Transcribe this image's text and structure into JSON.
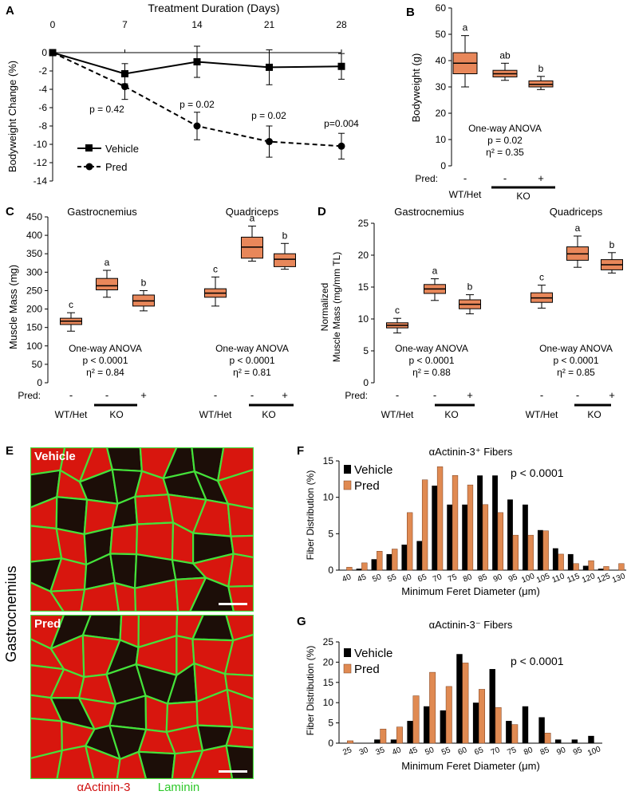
{
  "panels": {
    "A": "A",
    "B": "B",
    "C": "C",
    "D": "D",
    "E": "E",
    "F": "F",
    "G": "G"
  },
  "colors": {
    "box_fill": "#E8875A",
    "box_border": "#000000",
    "vehicle": "#000000",
    "pred": "#E08A52",
    "micro_red": "#D8160E",
    "micro_green": "#44E23A",
    "micro_dark": "#1C0E08"
  },
  "panel_a": {
    "top_axis_label": "Treatment Duration (Days)",
    "ylabel": "Bodyweight Change (%)",
    "legend": [
      "Vehicle",
      "Pred"
    ],
    "pvalues": [
      "p = 0.42",
      "p = 0.02",
      "p = 0.02",
      "p=0.004"
    ]
  },
  "panel_b": {
    "ylabel": "Bodyweight (g)",
    "stats": [
      "One-way ANOVA",
      "p = 0.02",
      "η² = 0.35"
    ],
    "letters": [
      "a",
      "ab",
      "b"
    ]
  },
  "panel_c": {
    "ylabel": "Muscle Mass (mg)",
    "group_titles": [
      "Gastrocnemius",
      "Quadriceps"
    ],
    "letters": [
      [
        "c",
        "a",
        "b"
      ],
      [
        "c",
        "a",
        "b"
      ]
    ],
    "stats": [
      [
        "One-way ANOVA",
        "p < 0.0001",
        "η² = 0.84"
      ],
      [
        "One-way ANOVA",
        "p < 0.0001",
        "η² = 0.81"
      ]
    ]
  },
  "panel_d": {
    "ylabel_line1": "Normalized",
    "ylabel_line2": "Muscle Mass (mg/mm TL)",
    "group_titles": [
      "Gastrocnemius",
      "Quadriceps"
    ],
    "letters": [
      [
        "c",
        "a",
        "b"
      ],
      [
        "c",
        "a",
        "b"
      ]
    ],
    "stats": [
      [
        "One-way ANOVA",
        "p < 0.0001",
        "η² = 0.88"
      ],
      [
        "One-way ANOVA",
        "p < 0.0001",
        "η² = 0.85"
      ]
    ]
  },
  "groups": {
    "pred_label": "Pred:",
    "pred_marks": [
      "-",
      "-",
      "+"
    ],
    "genotypes": [
      "WT/Het",
      "KO"
    ]
  },
  "panel_e": {
    "side_label": "Gastrocnemius",
    "image_labels": [
      "Vehicle",
      "Pred"
    ],
    "caption_red": "αActinin-3",
    "caption_green": "Laminin"
  },
  "panel_f": {
    "title": "αActinin-3⁺ Fibers",
    "ylabel": "Fiber Distribution (%)",
    "xlabel": "Minimum Feret Diameter (μm)",
    "legend": [
      "Vehicle",
      "Pred"
    ],
    "pvalue": "p < 0.0001"
  },
  "panel_g": {
    "title": "αActinin-3⁻ Fibers",
    "ylabel": "Fiber Distribution (%)",
    "xlabel": "Minimum Feret Diameter (μm)",
    "legend": [
      "Vehicle",
      "Pred"
    ],
    "pvalue": "p < 0.0001"
  },
  "chart_data": [
    {
      "id": "A",
      "type": "line",
      "title": "Treatment Duration (Days)",
      "xlabel": "",
      "ylabel": "Bodyweight Change (%)",
      "x": [
        0,
        7,
        14,
        21,
        28
      ],
      "xlim": [
        0,
        28
      ],
      "ylim": [
        -14,
        0
      ],
      "x_ticks": [
        0,
        7,
        14,
        21,
        28
      ],
      "y_ticks": [
        0,
        -2,
        -4,
        -6,
        -8,
        -10,
        -12,
        -14
      ],
      "series": [
        {
          "name": "Vehicle",
          "values": [
            0,
            -2.3,
            -1.0,
            -1.6,
            -1.5
          ],
          "errors": [
            0,
            1.1,
            1.7,
            1.9,
            1.4
          ]
        },
        {
          "name": "Pred",
          "values": [
            0,
            -3.7,
            -8.0,
            -9.7,
            -10.2
          ],
          "errors": [
            0,
            1.4,
            1.5,
            1.7,
            1.4
          ]
        }
      ]
    },
    {
      "id": "B",
      "type": "box",
      "ylabel": "Bodyweight (g)",
      "ylim": [
        0,
        60
      ],
      "y_ticks": [
        0,
        10,
        20,
        30,
        40,
        50,
        60
      ],
      "categories": [
        "WT/Het Pred -",
        "KO Pred -",
        "KO Pred +"
      ],
      "boxes": [
        {
          "min": 30,
          "q1": 35,
          "median": 39,
          "q3": 43,
          "max": 49.5
        },
        {
          "min": 32.5,
          "q1": 33.8,
          "median": 35,
          "q3": 36.3,
          "max": 39
        },
        {
          "min": 29,
          "q1": 30,
          "median": 31,
          "q3": 32.3,
          "max": 34
        }
      ]
    },
    {
      "id": "C",
      "type": "box",
      "ylabel": "Muscle Mass (mg)",
      "ylim": [
        0,
        450
      ],
      "y_ticks": [
        0,
        50,
        100,
        150,
        200,
        250,
        300,
        350,
        400,
        450
      ],
      "categories": [
        "Gastrocnemius WT/Het -",
        "Gastrocnemius KO -",
        "Gastrocnemius KO +",
        "Quadriceps WT/Het -",
        "Quadriceps KO -",
        "Quadriceps KO +"
      ],
      "boxes": [
        {
          "min": 140,
          "q1": 158,
          "median": 167,
          "q3": 175,
          "max": 190
        },
        {
          "min": 232,
          "q1": 252,
          "median": 263,
          "q3": 283,
          "max": 305
        },
        {
          "min": 195,
          "q1": 208,
          "median": 222,
          "q3": 238,
          "max": 250
        },
        {
          "min": 208,
          "q1": 232,
          "median": 243,
          "q3": 255,
          "max": 287
        },
        {
          "min": 330,
          "q1": 338,
          "median": 368,
          "q3": 395,
          "max": 425
        },
        {
          "min": 308,
          "q1": 315,
          "median": 335,
          "q3": 350,
          "max": 378
        }
      ]
    },
    {
      "id": "D",
      "type": "box",
      "ylabel": "Normalized Muscle Mass (mg/mm TL)",
      "ylim": [
        0,
        25
      ],
      "y_ticks": [
        0,
        5,
        10,
        15,
        20,
        25
      ],
      "categories": [
        "Gastrocnemius WT/Het -",
        "Gastrocnemius KO -",
        "Gastrocnemius KO +",
        "Quadriceps WT/Het -",
        "Quadriceps KO -",
        "Quadriceps KO +"
      ],
      "boxes": [
        {
          "min": 7.8,
          "q1": 8.6,
          "median": 9.0,
          "q3": 9.4,
          "max": 10.1
        },
        {
          "min": 12.9,
          "q1": 14.0,
          "median": 14.7,
          "q3": 15.4,
          "max": 16.3
        },
        {
          "min": 10.8,
          "q1": 11.6,
          "median": 12.3,
          "q3": 13.0,
          "max": 13.8
        },
        {
          "min": 11.7,
          "q1": 12.6,
          "median": 13.3,
          "q3": 14.1,
          "max": 15.3
        },
        {
          "min": 18.1,
          "q1": 19.2,
          "median": 20.2,
          "q3": 21.3,
          "max": 23.0
        },
        {
          "min": 17.2,
          "q1": 17.7,
          "median": 18.5,
          "q3": 19.3,
          "max": 20.4
        }
      ]
    },
    {
      "id": "F",
      "type": "bar",
      "title": "αActinin-3⁺ Fibers",
      "xlabel": "Minimum Feret Diameter (μm)",
      "ylabel": "Fiber Distribution (%)",
      "ylim": [
        0,
        15
      ],
      "y_ticks": [
        0,
        5,
        10,
        15
      ],
      "categories": [
        "40",
        "45",
        "50",
        "55",
        "60",
        "65",
        "70",
        "75",
        "80",
        "85",
        "90",
        "95",
        "100",
        "105",
        "110",
        "115",
        "120",
        "125",
        "130"
      ],
      "series": [
        {
          "name": "Vehicle",
          "values": [
            0,
            0.2,
            1.5,
            2.2,
            3.5,
            4.0,
            11.6,
            9.0,
            9.0,
            13.0,
            13.0,
            9.7,
            9.0,
            5.5,
            3.0,
            2.2,
            0.6,
            0.2,
            0
          ]
        },
        {
          "name": "Pred",
          "values": [
            0.4,
            1.0,
            2.6,
            2.9,
            7.9,
            12.4,
            14.2,
            13.0,
            11.7,
            9.0,
            7.9,
            4.8,
            4.8,
            5.4,
            2.2,
            0.9,
            1.3,
            0.5,
            0.9
          ]
        }
      ]
    },
    {
      "id": "G",
      "type": "bar",
      "title": "αActinin-3⁻ Fibers",
      "xlabel": "Minimum Feret Diameter (μm)",
      "ylabel": "Fiber Distribution (%)",
      "ylim": [
        0,
        25
      ],
      "y_ticks": [
        0,
        5,
        10,
        15,
        20,
        25
      ],
      "categories": [
        "25",
        "30",
        "35",
        "40",
        "45",
        "50",
        "55",
        "60",
        "65",
        "70",
        "75",
        "80",
        "85",
        "90",
        "95",
        "100"
      ],
      "series": [
        {
          "name": "Vehicle",
          "values": [
            0,
            0,
            0.9,
            0.9,
            5.5,
            9.1,
            8.1,
            22.0,
            10.0,
            18.3,
            5.5,
            9.1,
            6.4,
            0.9,
            0.9,
            1.8
          ]
        },
        {
          "name": "Pred",
          "values": [
            0.6,
            0,
            3.5,
            4.0,
            11.7,
            17.5,
            14.0,
            19.8,
            13.3,
            8.8,
            4.6,
            0,
            2.5,
            0,
            0,
            0
          ]
        }
      ]
    }
  ]
}
